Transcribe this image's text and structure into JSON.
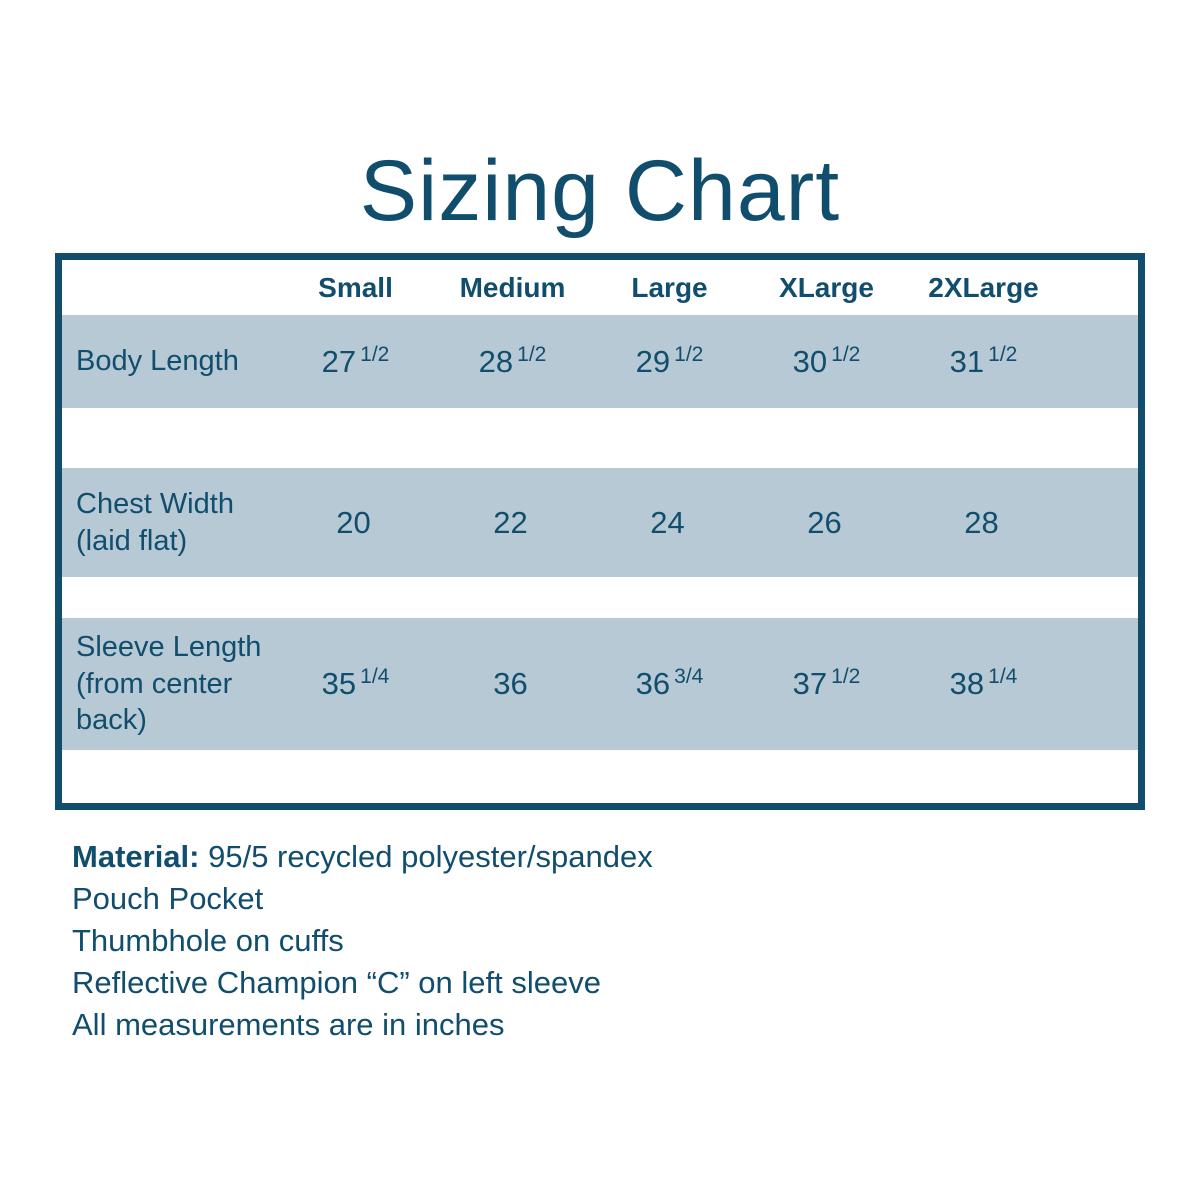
{
  "title": "Sizing Chart",
  "colors": {
    "teal": "#114e6e",
    "row_band": "#b6c9d5",
    "background": "#ffffff"
  },
  "table": {
    "columns": [
      "Small",
      "Medium",
      "Large",
      "XLarge",
      "2XLarge"
    ],
    "rows": [
      {
        "label": "Body Length",
        "cells": [
          {
            "w": "27",
            "f": "1/2"
          },
          {
            "w": "28",
            "f": "1/2"
          },
          {
            "w": "29",
            "f": "1/2"
          },
          {
            "w": "30",
            "f": "1/2"
          },
          {
            "w": "31",
            "f": "1/2"
          }
        ]
      },
      {
        "label": "Chest Width\n(laid flat)",
        "cells": [
          {
            "w": "20",
            "f": ""
          },
          {
            "w": "22",
            "f": ""
          },
          {
            "w": "24",
            "f": ""
          },
          {
            "w": "26",
            "f": ""
          },
          {
            "w": "28",
            "f": ""
          }
        ]
      },
      {
        "label": "Sleeve Length\n(from center\nback)",
        "cells": [
          {
            "w": "35",
            "f": "1/4"
          },
          {
            "w": "36",
            "f": ""
          },
          {
            "w": "36",
            "f": "3/4"
          },
          {
            "w": "37",
            "f": "1/2"
          },
          {
            "w": "38",
            "f": "1/4"
          }
        ]
      }
    ]
  },
  "notes": {
    "material_label": "Material:",
    "material_value": "95/5 recycled polyester/spandex",
    "lines": [
      "Pouch Pocket",
      "Thumbhole on cuffs",
      "Reflective Champion “C” on left sleeve",
      "All measurements are in inches"
    ]
  },
  "chart_data": {
    "type": "table",
    "title": "Sizing Chart",
    "columns": [
      "Small",
      "Medium",
      "Large",
      "XLarge",
      "2XLarge"
    ],
    "rows": [
      {
        "label": "Body Length",
        "values": [
          "27 1/2",
          "28 1/2",
          "29 1/2",
          "30 1/2",
          "31 1/2"
        ]
      },
      {
        "label": "Chest Width (laid flat)",
        "values": [
          "20",
          "22",
          "24",
          "26",
          "28"
        ]
      },
      {
        "label": "Sleeve Length (from center back)",
        "values": [
          "35 1/4",
          "36",
          "36 3/4",
          "37 1/2",
          "38 1/4"
        ]
      }
    ],
    "units": "inches",
    "notes": [
      "Material: 95/5 recycled polyester/spandex",
      "Pouch Pocket",
      "Thumbhole on cuffs",
      "Reflective Champion “C” on left sleeve",
      "All measurements are in inches"
    ]
  }
}
